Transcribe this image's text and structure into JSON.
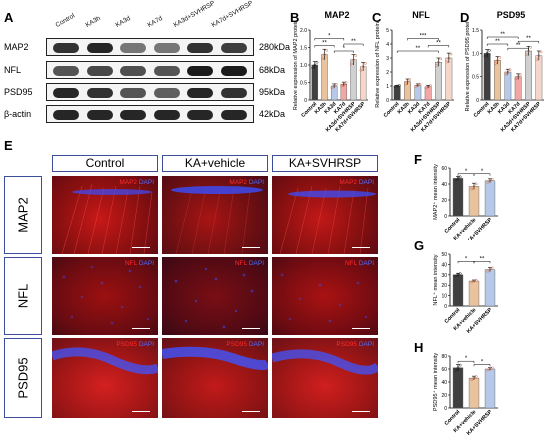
{
  "panel_letters": {
    "A": "A",
    "B": "B",
    "C": "C",
    "D": "D",
    "E": "E",
    "F": "F",
    "G": "G",
    "H": "H"
  },
  "blot": {
    "lanes": [
      "Control",
      "KA3h",
      "KA3d",
      "KA7d",
      "KA3d+SVHRSP",
      "KA7d+SVHRSP"
    ],
    "rows": [
      {
        "label": "MAP2",
        "kda": "280kDa"
      },
      {
        "label": "NFL",
        "kda": "68kDa"
      },
      {
        "label": "PSD95",
        "kda": "95kDa"
      },
      {
        "label": "β-actin",
        "kda": "42kDa"
      }
    ]
  },
  "stars": {
    "one": "*",
    "two": "**",
    "three": "***"
  },
  "images": {
    "columns": [
      "Control",
      "KA+vehicle",
      "KA+SVHRSP"
    ],
    "rows": [
      {
        "label": "MAP2",
        "marker": "MAP2"
      },
      {
        "label": "NFL",
        "marker": "NFL"
      },
      {
        "label": "PSD95",
        "marker": "PSD95"
      }
    ],
    "dapi": "DAPI"
  },
  "chart_data": [
    {
      "type": "bar",
      "title": "MAP2",
      "ylabel": "Relative expression of MAP2 protein",
      "categories": [
        "Control",
        "KA3h",
        "KA3d",
        "KA7d",
        "KA3d+SVHRSP",
        "KA7d+SVHRSP"
      ],
      "values": [
        1.0,
        1.3,
        0.4,
        0.45,
        1.15,
        0.95
      ],
      "errors": [
        0.1,
        0.15,
        0.06,
        0.06,
        0.15,
        0.12
      ],
      "colors": [
        "#404040",
        "#e8c39e",
        "#b7c9e8",
        "#f2a6a6",
        "#d0d0d0",
        "#f6d6c8"
      ],
      "ylim": [
        0,
        2.0
      ],
      "yticks": [
        "0",
        "0.5",
        "1.0",
        "1.5",
        "2.0"
      ]
    },
    {
      "type": "bar",
      "title": "NFL",
      "ylabel": "Relative expression of NFL protein",
      "categories": [
        "Control",
        "KA3h",
        "KA3d",
        "KA7d",
        "KA3d+SVHRSP",
        "KA7d+SVHRSP"
      ],
      "values": [
        1.0,
        1.3,
        1.05,
        0.95,
        2.7,
        3.0
      ],
      "errors": [
        0.05,
        0.2,
        0.1,
        0.1,
        0.3,
        0.35
      ],
      "colors": [
        "#404040",
        "#e8c39e",
        "#b7c9e8",
        "#f2a6a6",
        "#d0d0d0",
        "#f6d6c8"
      ],
      "ylim": [
        0,
        5
      ],
      "yticks": [
        "0",
        "1",
        "2",
        "3",
        "4",
        "5"
      ]
    },
    {
      "type": "bar",
      "title": "PSD95",
      "ylabel": "Relative expression of PSD95 protein",
      "categories": [
        "Control",
        "KA3h",
        "KA3d",
        "KA7d",
        "KA3d+SVHRSP",
        "KA7d+SVHRSP"
      ],
      "values": [
        1.0,
        0.85,
        0.6,
        0.5,
        1.05,
        0.95
      ],
      "errors": [
        0.08,
        0.08,
        0.06,
        0.06,
        0.1,
        0.1
      ],
      "colors": [
        "#404040",
        "#e8c39e",
        "#b7c9e8",
        "#f2a6a6",
        "#d0d0d0",
        "#f6d6c8"
      ],
      "ylim": [
        0,
        1.5
      ],
      "yticks": [
        "0",
        "0.5",
        "1.0",
        "1.5"
      ]
    },
    {
      "type": "bar",
      "ylabel": "MAP2⁺ mean intensity",
      "categories": [
        "Control",
        "KA+vehicle",
        "KA+SVHRSP"
      ],
      "values": [
        47,
        37,
        44
      ],
      "errors": [
        2.5,
        4,
        2.5
      ],
      "colors": [
        "#404040",
        "#e8c39e",
        "#b7c9e8"
      ],
      "ylim": [
        0,
        60
      ],
      "yticks": [
        "0",
        "20",
        "40",
        "60"
      ]
    },
    {
      "type": "bar",
      "ylabel": "NFL⁺ mean intensity",
      "categories": [
        "Control",
        "KA+vehicle",
        "KA+SVHRSP"
      ],
      "values": [
        30,
        24,
        35
      ],
      "errors": [
        1.5,
        1,
        2
      ],
      "colors": [
        "#404040",
        "#e8c39e",
        "#b7c9e8"
      ],
      "ylim": [
        0,
        50
      ],
      "yticks": [
        "0",
        "10",
        "20",
        "30",
        "40",
        "50"
      ]
    },
    {
      "type": "bar",
      "ylabel": "PSD95⁺ mean intensity",
      "categories": [
        "Control",
        "KA+vehicle",
        "KA+SVHRSP"
      ],
      "values": [
        62,
        46,
        60
      ],
      "errors": [
        5,
        3,
        2
      ],
      "colors": [
        "#404040",
        "#e8c39e",
        "#b7c9e8"
      ],
      "ylim": [
        0,
        80
      ],
      "yticks": [
        "0",
        "20",
        "40",
        "60",
        "80"
      ]
    }
  ]
}
